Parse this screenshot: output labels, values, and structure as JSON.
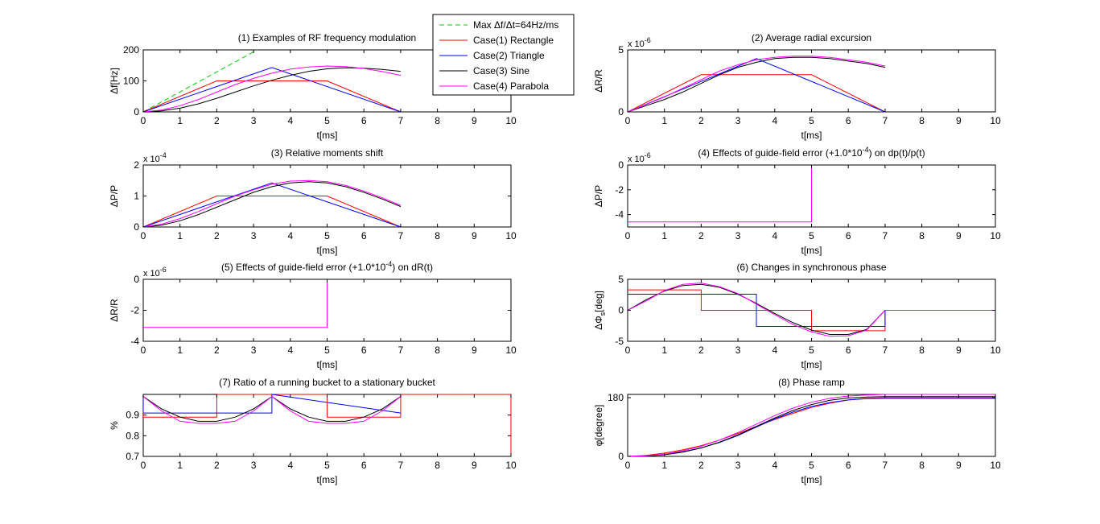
{
  "colors": {
    "case1": "#ff0000",
    "case2": "#0000ff",
    "case3": "#000000",
    "case4": "#ff00ff",
    "max": "#00cc00",
    "axes": "#000000"
  },
  "legend": {
    "placement": "top-center",
    "entries": [
      {
        "key": "max",
        "label": "Max Δf/Δt=64Hz/ms"
      },
      {
        "key": "case1",
        "label": "Case(1) Rectangle"
      },
      {
        "key": "case2",
        "label": "Case(2) Triangle"
      },
      {
        "key": "case3",
        "label": "Case(3) Sine"
      },
      {
        "key": "case4",
        "label": "Case(4) Parabola"
      }
    ]
  },
  "chart_data": [
    {
      "id": "p1",
      "type": "line",
      "title": "(1) Examples of RF frequency modulation",
      "xlabel": "t[ms]",
      "ylabel": "Δf[Hz]",
      "xlim": [
        0,
        10
      ],
      "ylim": [
        0,
        200
      ],
      "xticks": [
        "0",
        "1",
        "2",
        "3",
        "4",
        "5",
        "6",
        "7",
        "8",
        "9",
        "10"
      ],
      "yticks": [
        "0",
        "100",
        "200"
      ],
      "exponent": "",
      "grid": false,
      "series": [
        {
          "key": "max",
          "dashed": true,
          "x": [
            0,
            3.1
          ],
          "y": [
            0,
            200
          ]
        },
        {
          "key": "case1",
          "x": [
            0,
            2,
            5,
            7
          ],
          "y": [
            0,
            100,
            100,
            0
          ]
        },
        {
          "key": "case2",
          "x": [
            0,
            3.5,
            7
          ],
          "y": [
            0,
            143,
            0
          ]
        },
        {
          "key": "case3",
          "x": [
            0,
            0.5,
            1,
            1.5,
            2,
            2.5,
            3,
            3.5,
            4,
            4.5,
            5,
            5.5,
            6,
            6.5,
            7
          ],
          "y": [
            0,
            3,
            12,
            26,
            44,
            64,
            84,
            102,
            118,
            131,
            139,
            142,
            141,
            137,
            131
          ]
        },
        {
          "key": "case4",
          "x": [
            0,
            0.5,
            1,
            1.5,
            2,
            2.5,
            3,
            3.5,
            4,
            4.5,
            5,
            5.5,
            6,
            6.5,
            7
          ],
          "y": [
            0,
            6,
            20,
            40,
            64,
            88,
            108,
            125,
            138,
            145,
            148,
            146,
            140,
            130,
            118
          ]
        }
      ]
    },
    {
      "id": "p2",
      "type": "line",
      "title": "(2) Average radial excursion",
      "xlabel": "t[ms]",
      "ylabel": "ΔR/R",
      "xlim": [
        0,
        10
      ],
      "ylim": [
        0,
        5
      ],
      "xticks": [
        "0",
        "1",
        "2",
        "3",
        "4",
        "5",
        "6",
        "7",
        "8",
        "9",
        "10"
      ],
      "yticks": [
        "0",
        "5"
      ],
      "exponent": "-6",
      "grid": false,
      "series": [
        {
          "key": "case1",
          "x": [
            0,
            2,
            5,
            7
          ],
          "y": [
            0,
            3.0,
            3.0,
            0
          ]
        },
        {
          "key": "case2",
          "x": [
            0,
            3.5,
            7
          ],
          "y": [
            0,
            4.3,
            0
          ]
        },
        {
          "key": "case3",
          "x": [
            0,
            0.5,
            1,
            1.5,
            2,
            2.5,
            3,
            3.5,
            4,
            4.5,
            5,
            5.5,
            6,
            6.5,
            7
          ],
          "y": [
            0,
            0.5,
            1.0,
            1.6,
            2.3,
            3.0,
            3.6,
            4.0,
            4.3,
            4.4,
            4.4,
            4.3,
            4.1,
            3.9,
            3.6
          ]
        },
        {
          "key": "case4",
          "x": [
            0,
            0.5,
            1,
            1.5,
            2,
            2.5,
            3,
            3.5,
            4,
            4.5,
            5,
            5.5,
            6,
            6.5,
            7
          ],
          "y": [
            0,
            0.6,
            1.2,
            1.9,
            2.6,
            3.3,
            3.8,
            4.2,
            4.4,
            4.5,
            4.5,
            4.4,
            4.2,
            4.0,
            3.7
          ]
        }
      ]
    },
    {
      "id": "p3",
      "type": "line",
      "title": "(3) Relative moments shift",
      "xlabel": "t[ms]",
      "ylabel": "ΔP/P",
      "xlim": [
        0,
        10
      ],
      "ylim": [
        0,
        2
      ],
      "xticks": [
        "0",
        "1",
        "2",
        "3",
        "4",
        "5",
        "6",
        "7",
        "8",
        "9",
        "10"
      ],
      "yticks": [
        "0",
        "1",
        "2"
      ],
      "exponent": "-4",
      "grid": false,
      "series": [
        {
          "key": "case1",
          "x": [
            0,
            2,
            5,
            7
          ],
          "y": [
            0,
            1.0,
            1.0,
            0
          ]
        },
        {
          "key": "case2",
          "x": [
            0,
            3.5,
            7
          ],
          "y": [
            0,
            1.42,
            0
          ]
        },
        {
          "key": "case3",
          "x": [
            0,
            0.5,
            1,
            1.5,
            2,
            2.5,
            3,
            3.5,
            4,
            4.5,
            5,
            5.5,
            6,
            6.5,
            7
          ],
          "y": [
            0,
            0.06,
            0.2,
            0.4,
            0.64,
            0.88,
            1.12,
            1.3,
            1.42,
            1.46,
            1.42,
            1.3,
            1.12,
            0.9,
            0.66
          ]
        },
        {
          "key": "case4",
          "x": [
            0,
            0.5,
            1,
            1.5,
            2,
            2.5,
            3,
            3.5,
            4,
            4.5,
            5,
            5.5,
            6,
            6.5,
            7
          ],
          "y": [
            0,
            0.09,
            0.27,
            0.5,
            0.75,
            1.0,
            1.2,
            1.38,
            1.48,
            1.5,
            1.46,
            1.34,
            1.16,
            0.94,
            0.7
          ]
        }
      ]
    },
    {
      "id": "p4",
      "type": "line",
      "title": "(4) Effects of guide-field error (+1.0*10",
      "title_sup": "-4",
      "title_tail": ") on dp(t)/p(t)",
      "xlabel": "t[ms]",
      "ylabel": "ΔP/P",
      "xlim": [
        0,
        10
      ],
      "ylim": [
        -5,
        0
      ],
      "xticks": [
        "0",
        "1",
        "2",
        "3",
        "4",
        "5",
        "6",
        "7",
        "8",
        "9",
        "10"
      ],
      "yticks": [
        "0",
        "-2",
        "-4"
      ],
      "exponent": "-6",
      "grid": false,
      "series": [
        {
          "key": "case4",
          "x": [
            0,
            5,
            5
          ],
          "y": [
            -4.6,
            -4.6,
            0
          ]
        }
      ]
    },
    {
      "id": "p5",
      "type": "line",
      "title": "(5) Effects of guide-field error (+1.0*10",
      "title_sup": "-4",
      "title_tail": ") on dR(t)",
      "xlabel": "t[ms]",
      "ylabel": "ΔR/R",
      "xlim": [
        0,
        10
      ],
      "ylim": [
        -4,
        0
      ],
      "xticks": [
        "0",
        "1",
        "2",
        "3",
        "4",
        "5",
        "6",
        "7",
        "8",
        "9",
        "10"
      ],
      "yticks": [
        "0",
        "-2",
        "-4"
      ],
      "exponent": "-6",
      "grid": false,
      "series": [
        {
          "key": "case4",
          "x": [
            0,
            5,
            5
          ],
          "y": [
            -3.1,
            -3.1,
            0
          ]
        }
      ]
    },
    {
      "id": "p6",
      "type": "line",
      "title": "(6) Changes in synchronous phase",
      "xlabel": "t[ms]",
      "ylabel": "ΔΦ",
      "ylabel_sub": "s",
      "ylabel_tail": "[deg]",
      "xlim": [
        0,
        10
      ],
      "ylim": [
        -5,
        5
      ],
      "xticks": [
        "0",
        "1",
        "2",
        "3",
        "4",
        "5",
        "6",
        "7",
        "8",
        "9",
        "10"
      ],
      "yticks": [
        "5",
        "0",
        "-5"
      ],
      "exponent": "",
      "grid": false,
      "series": [
        {
          "key": "case1",
          "x": [
            0,
            2,
            2,
            5,
            5,
            7,
            7,
            10
          ],
          "y": [
            3.3,
            3.3,
            0,
            0,
            -3.3,
            -3.3,
            0,
            0
          ]
        },
        {
          "key": "case2",
          "x": [
            0,
            3.5,
            3.5,
            7,
            7,
            10
          ],
          "y": [
            2.6,
            2.6,
            -2.6,
            -2.6,
            0,
            0
          ]
        },
        {
          "key": "case3",
          "x": [
            0,
            0.5,
            1,
            1.5,
            2,
            2.5,
            3,
            3.5,
            4,
            4.5,
            5,
            5.5,
            6,
            6.5,
            7,
            10
          ],
          "y": [
            0,
            1.7,
            3.1,
            4.0,
            4.2,
            3.7,
            2.6,
            1.1,
            -0.5,
            -2.0,
            -3.2,
            -3.9,
            -3.9,
            -3.1,
            0,
            0
          ]
        },
        {
          "key": "case4",
          "x": [
            0,
            0.5,
            1,
            1.5,
            2,
            2.5,
            3,
            3.5,
            4,
            4.5,
            5,
            5.5,
            6,
            6.5,
            7,
            10
          ],
          "y": [
            0,
            1.5,
            3.2,
            4.2,
            4.4,
            3.8,
            2.7,
            1.0,
            -0.7,
            -2.3,
            -3.5,
            -4.2,
            -4.1,
            -3.2,
            0,
            0
          ]
        }
      ]
    },
    {
      "id": "p7",
      "type": "line",
      "title": "(7) Ratio of a running bucket to a stationary bucket",
      "xlabel": "t[ms]",
      "ylabel": "%",
      "xlim": [
        0,
        10
      ],
      "ylim": [
        0.7,
        1.0
      ],
      "xticks": [
        "0",
        "1",
        "2",
        "3",
        "4",
        "5",
        "6",
        "7",
        "8",
        "9",
        "10"
      ],
      "yticks": [
        "0.9",
        "0.8",
        "0.7"
      ],
      "yticks_values": [
        0.9,
        0.8,
        0.7
      ],
      "exponent": "",
      "grid": false,
      "series": [
        {
          "key": "case1",
          "x": [
            0,
            0,
            2,
            2,
            5,
            5,
            7,
            7,
            10,
            10
          ],
          "y": [
            1.0,
            0.89,
            0.89,
            1.0,
            1.0,
            0.89,
            0.89,
            1.0,
            1.0,
            0.7
          ]
        },
        {
          "key": "case2",
          "x": [
            0,
            0,
            3.5,
            3.5,
            7,
            7
          ],
          "y": [
            1.0,
            0.91,
            0.91,
            1.0,
            0.91,
            0.91
          ]
        },
        {
          "key": "case3",
          "x": [
            0,
            0.5,
            1,
            1.5,
            2,
            2.5,
            3,
            3.5,
            4,
            4.5,
            5,
            5.5,
            6,
            6.5,
            7
          ],
          "y": [
            0.99,
            0.93,
            0.89,
            0.87,
            0.87,
            0.89,
            0.93,
            0.99,
            0.93,
            0.89,
            0.87,
            0.87,
            0.89,
            0.93,
            0.99
          ]
        },
        {
          "key": "case4",
          "x": [
            0,
            0.5,
            1,
            1.5,
            2,
            2.5,
            3,
            3.5,
            4,
            4.5,
            5,
            5.5,
            6,
            6.5,
            7
          ],
          "y": [
            0.99,
            0.92,
            0.87,
            0.86,
            0.86,
            0.87,
            0.92,
            0.99,
            0.92,
            0.87,
            0.86,
            0.86,
            0.87,
            0.92,
            0.99
          ]
        }
      ]
    },
    {
      "id": "p8",
      "type": "line",
      "title": "(8) Phase ramp",
      "xlabel": "t[ms]",
      "ylabel": "φ[degree]",
      "xlim": [
        0,
        10
      ],
      "ylim": [
        0,
        190
      ],
      "xticks": [
        "0",
        "1",
        "2",
        "3",
        "4",
        "5",
        "6",
        "7",
        "8",
        "9",
        "10"
      ],
      "yticks": [
        "180",
        "0"
      ],
      "yticks_values": [
        180,
        0
      ],
      "exponent": "",
      "grid": false,
      "series": [
        {
          "key": "case1",
          "x": [
            0,
            0.5,
            1,
            1.5,
            2,
            2.5,
            3,
            3.5,
            4,
            4.5,
            5,
            5.5,
            6,
            6.5,
            7,
            10
          ],
          "y": [
            0,
            3,
            10,
            20,
            33,
            50,
            70,
            92,
            113,
            132,
            150,
            163,
            173,
            178,
            180,
            180
          ]
        },
        {
          "key": "case2",
          "x": [
            0,
            0.5,
            1,
            1.5,
            2,
            2.5,
            3,
            3.5,
            4,
            4.5,
            5,
            5.5,
            6,
            6.5,
            7,
            10
          ],
          "y": [
            0,
            1,
            6,
            14,
            26,
            43,
            64,
            90,
            115,
            136,
            153,
            165,
            173,
            177,
            178,
            178
          ]
        },
        {
          "key": "case3",
          "x": [
            0,
            0.5,
            1,
            1.5,
            2,
            2.5,
            3,
            3.5,
            4,
            4.5,
            5,
            5.5,
            6,
            6.5,
            7,
            10
          ],
          "y": [
            0,
            1,
            5,
            13,
            26,
            44,
            66,
            92,
            118,
            141,
            159,
            172,
            179,
            182,
            183,
            183
          ]
        },
        {
          "key": "case4",
          "x": [
            0,
            0.5,
            1,
            1.5,
            2,
            2.5,
            3,
            3.5,
            4,
            4.5,
            5,
            5.5,
            6,
            6.5,
            7,
            10
          ],
          "y": [
            0,
            2,
            7,
            17,
            31,
            50,
            73,
            99,
            125,
            148,
            166,
            178,
            185,
            188,
            190,
            190
          ]
        }
      ]
    }
  ]
}
